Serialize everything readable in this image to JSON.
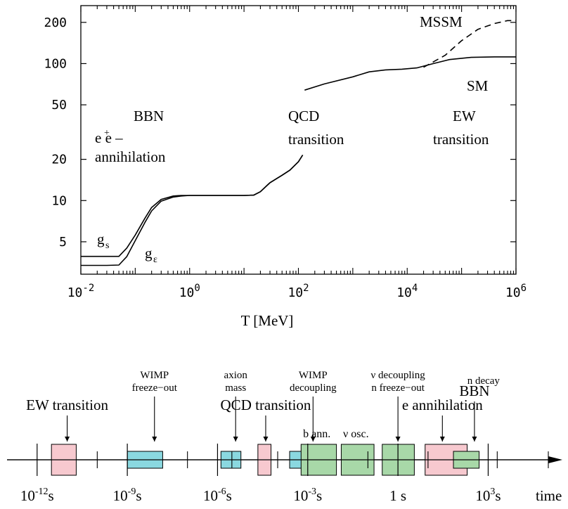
{
  "chart_data": [
    {
      "type": "line",
      "xlabel": "T [MeV]",
      "x_scale": "log",
      "y_scale": "log",
      "xlim": [
        0.01,
        1000000
      ],
      "ylim": [
        2.9,
        265
      ],
      "x_ticks": [
        {
          "value": 0.01,
          "base": "10",
          "exp": "-2"
        },
        {
          "value": 1,
          "base": "10",
          "exp": "0"
        },
        {
          "value": 100,
          "base": "10",
          "exp": "2"
        },
        {
          "value": 10000,
          "base": "10",
          "exp": "4"
        },
        {
          "value": 1000000,
          "base": "10",
          "exp": "6"
        }
      ],
      "y_ticks": [
        {
          "value": 5,
          "label": "5"
        },
        {
          "value": 10,
          "label": "10"
        },
        {
          "value": 20,
          "label": "20"
        },
        {
          "value": 50,
          "label": "50"
        },
        {
          "value": 100,
          "label": "100"
        },
        {
          "value": 200,
          "label": "200"
        }
      ],
      "series": [
        {
          "name": "g_s",
          "style": "solid",
          "segments": [
            [
              [
                0.01,
                3.91
              ],
              [
                0.03,
                3.91
              ],
              [
                0.05,
                3.91
              ],
              [
                0.07,
                4.5
              ],
              [
                0.1,
                5.6
              ],
              [
                0.15,
                7.4
              ],
              [
                0.2,
                8.9
              ],
              [
                0.3,
                10.2
              ],
              [
                0.5,
                10.8
              ],
              [
                0.7,
                10.9
              ],
              [
                1,
                10.9
              ],
              [
                3,
                10.9
              ],
              [
                10,
                10.9
              ],
              [
                15,
                10.95
              ],
              [
                20,
                11.6
              ],
              [
                30,
                13.5
              ],
              [
                50,
                15.3
              ],
              [
                70,
                16.7
              ],
              [
                100,
                19.2
              ],
              [
                120,
                21.5
              ]
            ]
          ]
        },
        {
          "name": "g_ε",
          "style": "solid",
          "segments": [
            [
              [
                0.01,
                3.36
              ],
              [
                0.03,
                3.36
              ],
              [
                0.05,
                3.38
              ],
              [
                0.07,
                3.9
              ],
              [
                0.1,
                5.1
              ],
              [
                0.15,
                6.9
              ],
              [
                0.2,
                8.4
              ],
              [
                0.3,
                9.9
              ],
              [
                0.5,
                10.6
              ],
              [
                0.7,
                10.8
              ],
              [
                1,
                10.9
              ],
              [
                3,
                10.9
              ],
              [
                10,
                10.9
              ],
              [
                15,
                10.95
              ],
              [
                20,
                11.6
              ],
              [
                30,
                13.5
              ],
              [
                50,
                15.3
              ],
              [
                70,
                16.7
              ],
              [
                100,
                19.2
              ],
              [
                120,
                21.5
              ]
            ]
          ]
        },
        {
          "name": "SM",
          "style": "solid",
          "segments": [
            [
              [
                130,
                64
              ],
              [
                300,
                71
              ],
              [
                1000,
                80
              ],
              [
                2000,
                87
              ],
              [
                4000,
                90
              ],
              [
                8000,
                91
              ],
              [
                15000,
                93
              ],
              [
                30000,
                100
              ],
              [
                60000,
                107
              ],
              [
                150000,
                111
              ],
              [
                400000,
                112
              ],
              [
                1000000,
                112
              ]
            ]
          ]
        },
        {
          "name": "MSSM",
          "style": "dashed",
          "segments": [
            [
              [
                20000,
                94
              ],
              [
                50000,
                115
              ],
              [
                100000,
                147
              ],
              [
                200000,
                178
              ],
              [
                400000,
                196
              ],
              [
                700000,
                206
              ],
              [
                1000000,
                206
              ]
            ]
          ]
        }
      ],
      "annotations": [
        {
          "key": "bbn",
          "text": "BBN"
        },
        {
          "key": "ee_base",
          "text": "e e –"
        },
        {
          "key": "ann",
          "text": "annihilation"
        },
        {
          "key": "qcd1",
          "text": "QCD"
        },
        {
          "key": "qcd2",
          "text": "transition"
        },
        {
          "key": "ew1",
          "text": "EW"
        },
        {
          "key": "ew2",
          "text": "transition"
        },
        {
          "key": "mssm",
          "text": "MSSM"
        },
        {
          "key": "sm",
          "text": "SM"
        },
        {
          "key": "gs",
          "text": "g",
          "sub": "s"
        },
        {
          "key": "ge",
          "text": "g",
          "sub": "ε"
        }
      ]
    },
    {
      "type": "timeline",
      "xlabel": "time",
      "x_scale": "log",
      "xlim_seconds": [
        1e-13,
        100000
      ],
      "tick_labels": [
        {
          "value": 1e-12,
          "base": "10",
          "exp": "-12",
          "unit": "s"
        },
        {
          "value": 1e-09,
          "base": "10",
          "exp": "-9",
          "unit": "s"
        },
        {
          "value": 1e-06,
          "base": "10",
          "exp": "-6",
          "unit": "s"
        },
        {
          "value": 0.001,
          "base": "10",
          "exp": "-3",
          "unit": "s"
        },
        {
          "value": 1,
          "text": "1 s"
        },
        {
          "value": 1000,
          "base": "10",
          "exp": "3",
          "unit": "s"
        }
      ],
      "major_ticks": [
        1e-12,
        1e-09,
        1e-06,
        0.001,
        1,
        1000
      ],
      "minor_ticks": [
        1e-10,
        1e-07,
        3e-06,
        0.0001,
        0.1,
        10,
        2000,
        100000
      ],
      "boxes": [
        {
          "from": 3e-12,
          "to": 2e-11,
          "color": "#f7c9cf",
          "height": "tall"
        },
        {
          "from": 1e-09,
          "to": 1.5e-08,
          "color": "#8ad8e0",
          "height": "short"
        },
        {
          "from": 1.3e-06,
          "to": 6e-06,
          "color": "#8ad8e0",
          "height": "short"
        },
        {
          "from": 2.2e-05,
          "to": 6e-05,
          "color": "#f7c9cf",
          "height": "tall"
        },
        {
          "from": 0.00025,
          "to": 0.004,
          "color": "#8ad8e0",
          "height": "short"
        },
        {
          "from": 0.0006,
          "to": 0.009,
          "color": "#a8d8a8",
          "height": "tall"
        },
        {
          "from": 0.013,
          "to": 0.16,
          "color": "#a8d8a8",
          "height": "tall"
        },
        {
          "from": 0.3,
          "to": 3.5,
          "color": "#a8d8a8",
          "height": "tall"
        },
        {
          "from": 8,
          "to": 200,
          "color": "#f7c9cf",
          "height": "tall"
        },
        {
          "from": 70,
          "to": 500,
          "color": "#a8d8a8",
          "height": "short"
        }
      ],
      "events": [
        {
          "lines": [
            "EW transition"
          ],
          "size": "large",
          "at": 1e-11,
          "arrow": true
        },
        {
          "lines": [
            "WIMP",
            "freeze−out"
          ],
          "size": "small",
          "at": 8e-09,
          "arrow": true
        },
        {
          "lines": [
            "axion",
            "mass"
          ],
          "size": "small",
          "at": 4e-06,
          "arrow": true
        },
        {
          "lines": [
            "QCD transition"
          ],
          "size": "large",
          "at": 4e-05,
          "arrow": true
        },
        {
          "lines": [
            "WIMP",
            "decoupling"
          ],
          "size": "small",
          "at": 0.0015,
          "arrow": true
        },
        {
          "lines": [
            "b ann."
          ],
          "size": "medium",
          "at": 0.002,
          "arrow": false
        },
        {
          "lines": [
            "ν osc."
          ],
          "size": "medium",
          "at": 0.04,
          "arrow": false
        },
        {
          "lines": [
            "ν decoupling",
            "n freeze−out"
          ],
          "size": "small",
          "at": 1,
          "arrow": true
        },
        {
          "lines": [
            "e annihilation"
          ],
          "size": "large",
          "at": 30,
          "arrow": true
        },
        {
          "lines": [
            "n decay"
          ],
          "size": "small",
          "at": 700,
          "arrow": false
        },
        {
          "lines": [
            "BBN"
          ],
          "size": "large",
          "at": 350,
          "arrow": true
        }
      ]
    }
  ]
}
